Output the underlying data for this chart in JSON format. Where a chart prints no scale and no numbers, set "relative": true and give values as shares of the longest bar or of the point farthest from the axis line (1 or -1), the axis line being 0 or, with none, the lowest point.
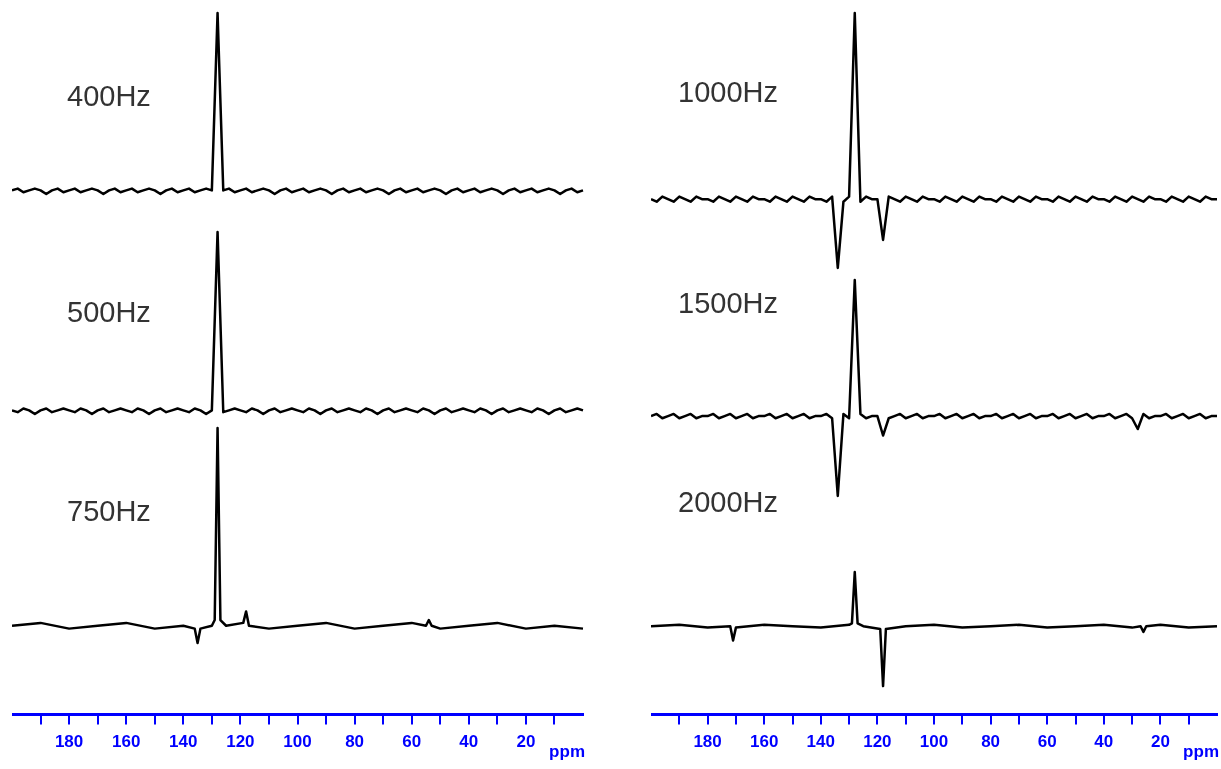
{
  "chart_data": [
    {
      "type": "line",
      "relative": true,
      "tick_labels": false,
      "annotations": [
        "400Hz"
      ],
      "x": [
        200,
        198,
        196,
        194,
        192,
        190,
        188,
        186,
        184,
        182,
        180,
        178,
        176,
        174,
        172,
        170,
        168,
        166,
        164,
        162,
        160,
        158,
        156,
        154,
        152,
        150,
        148,
        146,
        144,
        142,
        140,
        138,
        136,
        134,
        132,
        130,
        128,
        126,
        124,
        122,
        120,
        118,
        116,
        114,
        112,
        110,
        108,
        106,
        104,
        102,
        100,
        98,
        96,
        94,
        92,
        90,
        88,
        86,
        84,
        82,
        80,
        78,
        76,
        74,
        72,
        70,
        68,
        66,
        64,
        62,
        60,
        58,
        56,
        54,
        52,
        50,
        48,
        46,
        44,
        42,
        40,
        38,
        36,
        34,
        32,
        30,
        28,
        26,
        24,
        22,
        20,
        18,
        16,
        14,
        12,
        10,
        8,
        6,
        4,
        2,
        0
      ],
      "series": [
        {
          "color": "#000000",
          "values": [
            0.02,
            0.03,
            0.01,
            0.02,
            0.03,
            0.02,
            0.0,
            0.02,
            0.03,
            0.01,
            0.02,
            0.03,
            0.01,
            0.02,
            0.03,
            0.02,
            0.0,
            0.02,
            0.03,
            0.01,
            0.02,
            0.03,
            0.01,
            0.02,
            0.03,
            0.02,
            0.0,
            0.02,
            0.03,
            0.01,
            0.02,
            0.03,
            0.01,
            0.02,
            0.03,
            0.02,
            1,
            0.02,
            0.03,
            0.01,
            0.02,
            0.03,
            0.01,
            0.02,
            0.03,
            0.02,
            0.0,
            0.02,
            0.03,
            0.01,
            0.02,
            0.03,
            0.01,
            0.02,
            0.03,
            0.02,
            0.0,
            0.02,
            0.03,
            0.01,
            0.02,
            0.03,
            0.01,
            0.02,
            0.03,
            0.02,
            0.0,
            0.02,
            0.03,
            0.01,
            0.02,
            0.03,
            0.01,
            0.02,
            0.03,
            0.02,
            0.0,
            0.02,
            0.03,
            0.01,
            0.02,
            0.03,
            0.01,
            0.02,
            0.03,
            0.02,
            0.0,
            0.02,
            0.03,
            0.01,
            0.02,
            0.03,
            0.01,
            0.02,
            0.03,
            0.02,
            0.0,
            0.02,
            0.03,
            0.01,
            0.02
          ]
        }
      ]
    },
    {
      "type": "line",
      "relative": true,
      "tick_labels": false,
      "annotations": [
        "500Hz"
      ],
      "x": [
        200,
        198,
        196,
        194,
        192,
        190,
        188,
        186,
        184,
        182,
        180,
        178,
        176,
        174,
        172,
        170,
        168,
        166,
        164,
        162,
        160,
        158,
        156,
        154,
        152,
        150,
        148,
        146,
        144,
        142,
        140,
        138,
        136,
        134,
        132,
        130,
        128,
        126,
        124,
        122,
        120,
        118,
        116,
        114,
        112,
        110,
        108,
        106,
        104,
        102,
        100,
        98,
        96,
        94,
        92,
        90,
        88,
        86,
        84,
        82,
        80,
        78,
        76,
        74,
        72,
        70,
        68,
        66,
        64,
        62,
        60,
        58,
        56,
        54,
        52,
        50,
        48,
        46,
        44,
        42,
        40,
        38,
        36,
        34,
        32,
        30,
        28,
        26,
        24,
        22,
        20,
        18,
        16,
        14,
        12,
        10,
        8,
        6,
        4,
        2,
        0
      ],
      "series": [
        {
          "color": "#000000",
          "values": [
            0.02,
            0.01,
            0.03,
            0.02,
            0.0,
            0.02,
            0.03,
            0.01,
            0.02,
            0.03,
            0.02,
            0.01,
            0.03,
            0.02,
            0.0,
            0.02,
            0.03,
            0.01,
            0.02,
            0.03,
            0.02,
            0.01,
            0.03,
            0.02,
            0.0,
            0.02,
            0.03,
            0.01,
            0.02,
            0.03,
            0.02,
            0.01,
            0.03,
            0.02,
            0.0,
            0.02,
            1,
            0.01,
            0.02,
            0.03,
            0.02,
            0.01,
            0.03,
            0.02,
            0.0,
            0.02,
            0.03,
            0.01,
            0.02,
            0.03,
            0.02,
            0.01,
            0.03,
            0.02,
            0.0,
            0.02,
            0.03,
            0.01,
            0.02,
            0.03,
            0.02,
            0.01,
            0.03,
            0.02,
            0.0,
            0.02,
            0.03,
            0.01,
            0.02,
            0.03,
            0.02,
            0.01,
            0.03,
            0.02,
            0.0,
            0.02,
            0.03,
            0.01,
            0.02,
            0.03,
            0.02,
            0.01,
            0.03,
            0.02,
            0.0,
            0.02,
            0.03,
            0.01,
            0.02,
            0.03,
            0.02,
            0.01,
            0.03,
            0.02,
            0.0,
            0.02,
            0.03,
            0.01,
            0.02,
            0.03,
            0.02
          ]
        }
      ]
    },
    {
      "type": "line",
      "relative": true,
      "xlim": [
        200,
        0
      ],
      "xticks": [
        {
          "value": 190,
          "label": null
        },
        180,
        {
          "value": 170,
          "label": null
        },
        160,
        {
          "value": 150,
          "label": null
        },
        140,
        {
          "value": 130,
          "label": null
        },
        120,
        {
          "value": 110,
          "label": null
        },
        100,
        {
          "value": 90,
          "label": null
        },
        80,
        {
          "value": 70,
          "label": null
        },
        60,
        {
          "value": 50,
          "label": null
        },
        40,
        {
          "value": 30,
          "label": null
        },
        20,
        {
          "value": 10,
          "label": null
        }
      ],
      "xlabel": "ppm",
      "tick_labels": "x",
      "annotations": [
        "750Hz"
      ],
      "x": [
        200,
        190,
        180,
        170,
        160,
        150,
        140,
        136,
        135,
        134,
        130,
        129,
        128,
        127,
        125,
        119,
        118,
        117,
        110,
        100,
        90,
        80,
        70,
        60,
        55,
        54,
        53,
        50,
        40,
        30,
        20,
        10,
        0
      ],
      "series": [
        {
          "color": "#000000",
          "values": [
            0.31,
            0.32,
            0.3,
            0.31,
            0.32,
            0.3,
            0.31,
            0.3,
            0.25,
            0.3,
            0.31,
            0.33,
            1,
            0.33,
            0.31,
            0.32,
            0.36,
            0.31,
            0.3,
            0.31,
            0.32,
            0.3,
            0.31,
            0.32,
            0.31,
            0.33,
            0.31,
            0.3,
            0.31,
            0.32,
            0.3,
            0.31,
            0.3
          ]
        }
      ]
    },
    {
      "type": "line",
      "relative": true,
      "tick_labels": false,
      "annotations": [
        "1000Hz"
      ],
      "x": [
        200,
        198,
        196,
        194,
        192,
        190,
        188,
        186,
        184,
        182,
        180,
        178,
        176,
        174,
        172,
        170,
        168,
        166,
        164,
        162,
        160,
        158,
        156,
        154,
        152,
        150,
        148,
        146,
        144,
        142,
        140,
        138,
        136,
        134,
        132,
        130,
        128,
        126,
        124,
        122,
        120,
        118,
        116,
        114,
        112,
        110,
        108,
        106,
        104,
        102,
        100,
        98,
        96,
        94,
        92,
        90,
        88,
        86,
        84,
        82,
        80,
        78,
        76,
        74,
        72,
        70,
        68,
        66,
        64,
        62,
        60,
        58,
        56,
        54,
        52,
        50,
        48,
        46,
        44,
        42,
        40,
        38,
        36,
        34,
        32,
        30,
        28,
        26,
        24,
        22,
        20,
        18,
        16,
        14,
        12,
        10,
        8,
        6,
        4,
        2,
        0
      ],
      "series": [
        {
          "color": "#000000",
          "values": [
            0.27,
            0.26,
            0.28,
            0.27,
            0.26,
            0.28,
            0.27,
            0.26,
            0.28,
            0.27,
            0.27,
            0.26,
            0.28,
            0.27,
            0.26,
            0.28,
            0.27,
            0.26,
            0.28,
            0.27,
            0.27,
            0.26,
            0.28,
            0.27,
            0.26,
            0.28,
            0.27,
            0.26,
            0.28,
            0.27,
            0.27,
            0.26,
            0.28,
            0.0,
            0.26,
            0.28,
            1,
            0.26,
            0.28,
            0.27,
            0.27,
            0.11,
            0.28,
            0.27,
            0.26,
            0.28,
            0.27,
            0.26,
            0.28,
            0.27,
            0.27,
            0.26,
            0.28,
            0.27,
            0.26,
            0.28,
            0.27,
            0.26,
            0.28,
            0.27,
            0.27,
            0.26,
            0.28,
            0.27,
            0.26,
            0.28,
            0.27,
            0.26,
            0.28,
            0.27,
            0.27,
            0.26,
            0.28,
            0.27,
            0.26,
            0.28,
            0.27,
            0.26,
            0.28,
            0.27,
            0.27,
            0.26,
            0.28,
            0.27,
            0.26,
            0.28,
            0.27,
            0.26,
            0.28,
            0.27,
            0.27,
            0.26,
            0.28,
            0.27,
            0.26,
            0.28,
            0.27,
            0.26,
            0.28,
            0.27,
            0.27
          ]
        }
      ]
    },
    {
      "type": "line",
      "relative": true,
      "tick_labels": false,
      "annotations": [
        "1500Hz"
      ],
      "x": [
        200,
        198,
        196,
        194,
        192,
        190,
        188,
        186,
        184,
        182,
        180,
        178,
        176,
        174,
        172,
        170,
        168,
        166,
        164,
        162,
        160,
        158,
        156,
        154,
        152,
        150,
        148,
        146,
        144,
        142,
        140,
        138,
        136,
        134,
        132,
        130,
        128,
        126,
        124,
        122,
        120,
        118,
        116,
        114,
        112,
        110,
        108,
        106,
        104,
        102,
        100,
        98,
        96,
        94,
        92,
        90,
        88,
        86,
        84,
        82,
        80,
        78,
        76,
        74,
        72,
        70,
        68,
        66,
        64,
        62,
        60,
        58,
        56,
        54,
        52,
        50,
        48,
        46,
        44,
        42,
        40,
        38,
        36,
        34,
        32,
        30,
        28,
        26,
        24,
        22,
        20,
        18,
        16,
        14,
        12,
        10,
        8,
        6,
        4,
        2,
        0
      ],
      "series": [
        {
          "color": "#000000",
          "values": [
            0.37,
            0.38,
            0.36,
            0.37,
            0.38,
            0.36,
            0.37,
            0.38,
            0.36,
            0.37,
            0.37,
            0.38,
            0.36,
            0.37,
            0.38,
            0.36,
            0.37,
            0.38,
            0.36,
            0.37,
            0.37,
            0.38,
            0.36,
            0.37,
            0.38,
            0.36,
            0.37,
            0.38,
            0.36,
            0.37,
            0.37,
            0.38,
            0.36,
            0.0,
            0.38,
            0.36,
            1,
            0.38,
            0.36,
            0.37,
            0.37,
            0.28,
            0.36,
            0.37,
            0.38,
            0.36,
            0.37,
            0.38,
            0.36,
            0.37,
            0.37,
            0.38,
            0.36,
            0.37,
            0.38,
            0.36,
            0.37,
            0.38,
            0.36,
            0.37,
            0.37,
            0.38,
            0.36,
            0.37,
            0.38,
            0.36,
            0.37,
            0.38,
            0.36,
            0.37,
            0.37,
            0.38,
            0.36,
            0.37,
            0.38,
            0.36,
            0.37,
            0.38,
            0.36,
            0.37,
            0.37,
            0.38,
            0.36,
            0.37,
            0.38,
            0.36,
            0.31,
            0.38,
            0.36,
            0.37,
            0.37,
            0.38,
            0.36,
            0.37,
            0.38,
            0.36,
            0.37,
            0.38,
            0.36,
            0.37,
            0.37
          ]
        }
      ]
    },
    {
      "type": "line",
      "relative": true,
      "xlim": [
        200,
        0
      ],
      "xticks": [
        {
          "value": 190,
          "label": null
        },
        180,
        {
          "value": 170,
          "label": null
        },
        160,
        {
          "value": 150,
          "label": null
        },
        140,
        {
          "value": 130,
          "label": null
        },
        120,
        {
          "value": 110,
          "label": null
        },
        100,
        {
          "value": 90,
          "label": null
        },
        80,
        {
          "value": 70,
          "label": null
        },
        60,
        {
          "value": 50,
          "label": null
        },
        40,
        {
          "value": 30,
          "label": null
        },
        20,
        {
          "value": 10,
          "label": null
        }
      ],
      "xlabel": "ppm",
      "tick_labels": "x",
      "annotations": [
        "2000Hz"
      ],
      "x": [
        200,
        190,
        180,
        172,
        171,
        170,
        160,
        150,
        140,
        130,
        129,
        128,
        127,
        125,
        119,
        118,
        117,
        110,
        100,
        90,
        80,
        70,
        60,
        50,
        40,
        30,
        27,
        26,
        25,
        20,
        10,
        0
      ],
      "series": [
        {
          "color": "#000000",
          "values": [
            0.62,
            0.63,
            0.61,
            0.62,
            0.52,
            0.61,
            0.63,
            0.62,
            0.61,
            0.63,
            0.64,
            1,
            0.64,
            0.62,
            0.6,
            0.2,
            0.6,
            0.62,
            0.63,
            0.61,
            0.62,
            0.63,
            0.61,
            0.62,
            0.63,
            0.61,
            0.62,
            0.58,
            0.62,
            0.63,
            0.61,
            0.62
          ]
        }
      ]
    }
  ]
}
